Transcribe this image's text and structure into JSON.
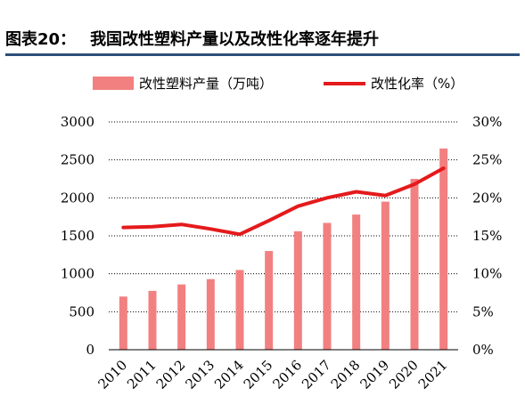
{
  "header": {
    "label": "图表20：",
    "title": "我国改性塑料产量以及改性化率逐年提升"
  },
  "colors": {
    "bar": "#f28080",
    "line": "#e41a1c",
    "title_rule": "#2d4f7a",
    "grid": "#000000"
  },
  "chart_data": {
    "type": "bar",
    "categories": [
      "2010",
      "2011",
      "2012",
      "2013",
      "2014",
      "2015",
      "2016",
      "2017",
      "2018",
      "2019",
      "2020",
      "2021"
    ],
    "series": [
      {
        "name": "改性塑料产量（万吨）",
        "type": "bar",
        "axis": "left",
        "values": [
          700,
          775,
          860,
          930,
          1050,
          1300,
          1560,
          1670,
          1780,
          1950,
          2250,
          2650
        ]
      },
      {
        "name": "改性化率（%）",
        "type": "line",
        "axis": "right",
        "values": [
          16.1,
          16.2,
          16.5,
          15.9,
          15.2,
          17.0,
          18.9,
          20.0,
          20.8,
          20.3,
          21.8,
          23.9
        ]
      }
    ],
    "y_left": {
      "range": [
        0,
        3000
      ],
      "ticks": [
        "0",
        "500",
        "1000",
        "1500",
        "2000",
        "2500",
        "3000"
      ]
    },
    "y_right": {
      "range": [
        0,
        30
      ],
      "ticks": [
        "0%",
        "5%",
        "10%",
        "15%",
        "20%",
        "25%",
        "30%"
      ]
    },
    "grid": "dotted horizontal",
    "legend": "top"
  }
}
